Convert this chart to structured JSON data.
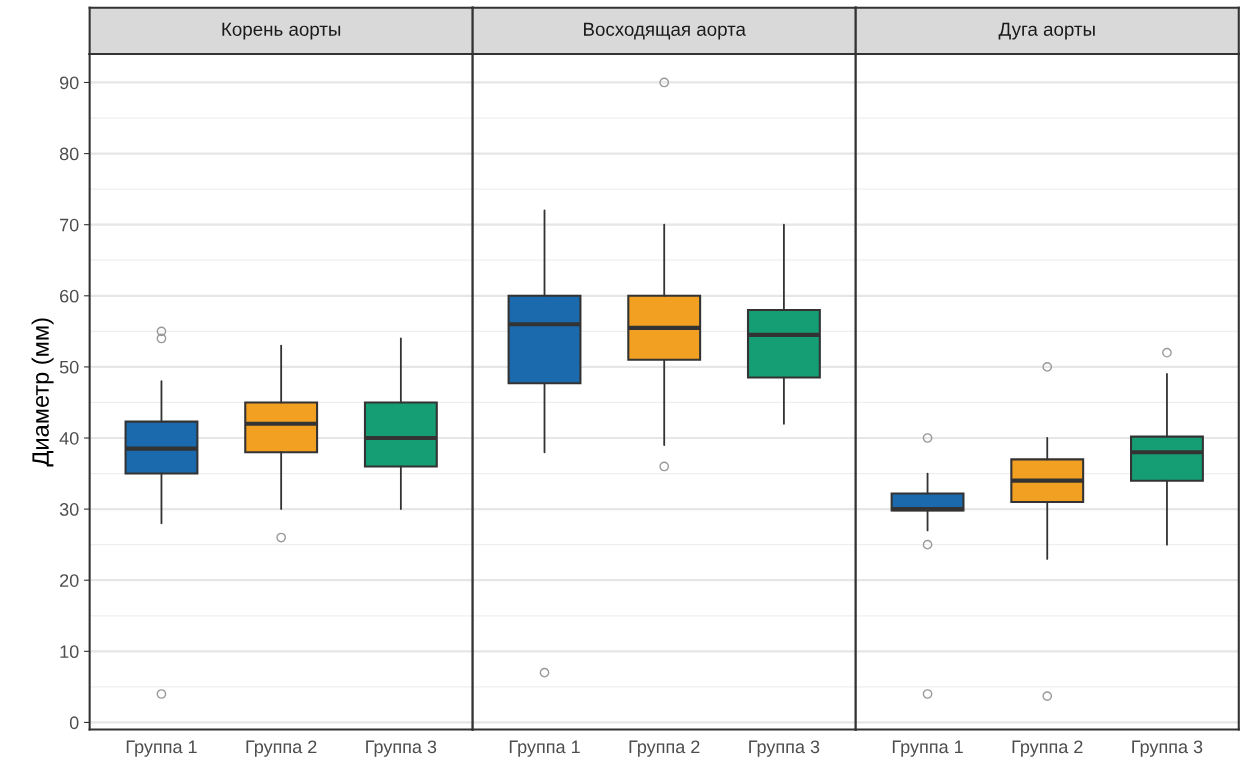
{
  "chart_data": [
    {
      "type": "box",
      "title": "Корень аорты",
      "ylabel": "Диаметр (мм)",
      "categories": [
        "Группа 1",
        "Группа 2",
        "Группа 3"
      ],
      "colors": [
        "#1a6aad",
        "#f2a022",
        "#159e74"
      ],
      "ylim": [
        -1,
        94
      ],
      "yticks": [
        0,
        10,
        20,
        30,
        40,
        50,
        60,
        70,
        80,
        90
      ],
      "grid": "y",
      "boxes": [
        {
          "low": 28,
          "q1": 35,
          "median": 38.5,
          "q3": 42.3,
          "high": 48,
          "outliers": [
            4,
            54,
            55
          ]
        },
        {
          "low": 30,
          "q1": 38,
          "median": 42,
          "q3": 45,
          "high": 53,
          "outliers": [
            26
          ]
        },
        {
          "low": 30,
          "q1": 36,
          "median": 40,
          "q3": 45,
          "high": 54
        }
      ]
    },
    {
      "type": "box",
      "title": "Восходящая аорта",
      "categories": [
        "Группа 1",
        "Группа 2",
        "Группа 3"
      ],
      "colors": [
        "#1a6aad",
        "#f2a022",
        "#159e74"
      ],
      "ylim": [
        -1,
        94
      ],
      "yticks": [
        0,
        10,
        20,
        30,
        40,
        50,
        60,
        70,
        80,
        90
      ],
      "grid": "y",
      "tick_labels": "x",
      "boxes": [
        {
          "low": 38,
          "q1": 47.7,
          "median": 56,
          "q3": 60,
          "high": 72,
          "outliers": [
            7
          ]
        },
        {
          "low": 39,
          "q1": 51,
          "median": 55.5,
          "q3": 60,
          "high": 70,
          "outliers": [
            36,
            90
          ]
        },
        {
          "low": 42,
          "q1": 48.5,
          "median": 54.5,
          "q3": 58,
          "high": 70
        }
      ]
    },
    {
      "type": "box",
      "title": "Дуга аорты",
      "categories": [
        "Группа 1",
        "Группа 2",
        "Группа 3"
      ],
      "colors": [
        "#1a6aad",
        "#f2a022",
        "#159e74"
      ],
      "ylim": [
        -1,
        94
      ],
      "yticks": [
        0,
        10,
        20,
        30,
        40,
        50,
        60,
        70,
        80,
        90
      ],
      "grid": "y",
      "tick_labels": "x",
      "boxes": [
        {
          "low": 27,
          "q1": 29.8,
          "median": 30,
          "q3": 32.2,
          "high": 35,
          "outliers": [
            4,
            25,
            40
          ]
        },
        {
          "low": 23,
          "q1": 31,
          "median": 34,
          "q3": 37,
          "high": 40,
          "outliers": [
            3.7,
            50
          ]
        },
        {
          "low": 25,
          "q1": 34,
          "median": 38,
          "q3": 40.2,
          "high": 49,
          "outliers": [
            52
          ]
        }
      ]
    }
  ]
}
